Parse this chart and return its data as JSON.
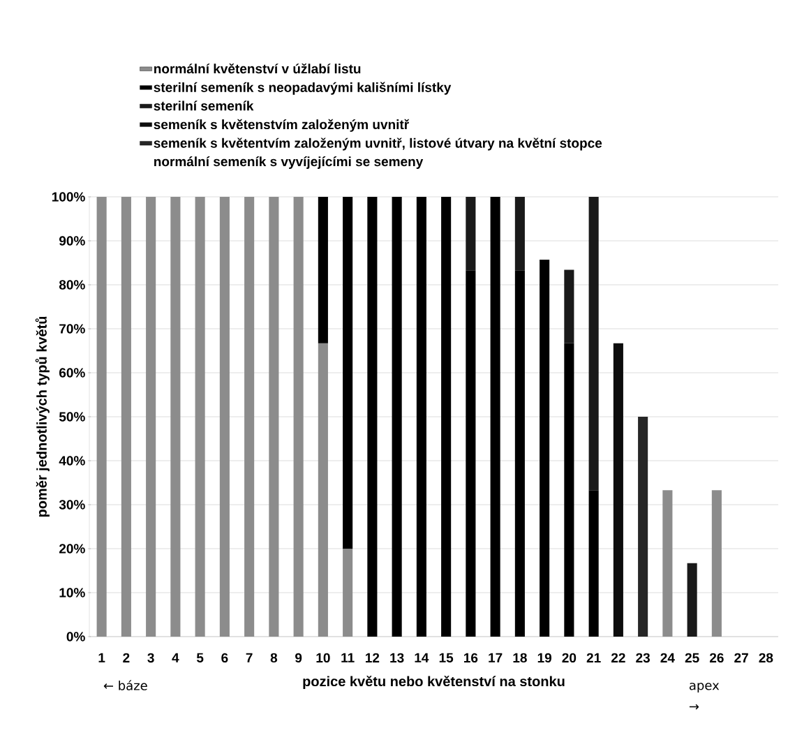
{
  "chart_data": {
    "type": "bar",
    "stacked": true,
    "xlabel": "pozice květu nebo květenství na stonku",
    "ylabel": "poměr jednotlivých typů květů",
    "categories": [
      "1",
      "2",
      "3",
      "4",
      "5",
      "6",
      "7",
      "8",
      "9",
      "10",
      "11",
      "12",
      "13",
      "14",
      "15",
      "16",
      "17",
      "18",
      "19",
      "20",
      "21",
      "22",
      "23",
      "24",
      "25",
      "26",
      "27",
      "28"
    ],
    "series": [
      {
        "name": "normální květenství v úžlabí listu",
        "color": "#8c8c8c",
        "values": [
          100,
          100,
          100,
          100,
          100,
          100,
          100,
          100,
          100,
          66.7,
          20,
          null,
          null,
          null,
          null,
          null,
          null,
          null,
          null,
          null,
          null,
          null,
          null,
          33.3,
          null,
          33.3,
          null,
          null
        ]
      },
      {
        "name": "sterilní semeník s neopadavými kališními lístky",
        "color": "#000000",
        "values": [
          null,
          null,
          null,
          null,
          null,
          null,
          null,
          null,
          null,
          33.3,
          80,
          100,
          100,
          100,
          100,
          83.3,
          100,
          83.3,
          85.7,
          66.7,
          33.3,
          null,
          null,
          null,
          null,
          null,
          null,
          null
        ]
      },
      {
        "name": "sterilní semeník",
        "color": "#1a1a1a",
        "values": [
          null,
          null,
          null,
          null,
          null,
          null,
          null,
          null,
          null,
          null,
          null,
          null,
          null,
          null,
          null,
          16.7,
          null,
          16.7,
          null,
          16.7,
          66.7,
          null,
          null,
          null,
          16.7,
          null,
          null,
          null
        ]
      },
      {
        "name": "semeník s květenstvím založeným uvnitř",
        "color": "#0d0d0d",
        "values": [
          null,
          null,
          null,
          null,
          null,
          null,
          null,
          null,
          null,
          null,
          null,
          null,
          null,
          null,
          null,
          null,
          null,
          null,
          null,
          null,
          null,
          66.7,
          null,
          null,
          null,
          null,
          null,
          null
        ]
      },
      {
        "name": "semeník s květentvím založeným uvnitř, listové útvary na květní stopce",
        "color": "#262626",
        "values": [
          null,
          null,
          null,
          null,
          null,
          null,
          null,
          null,
          null,
          null,
          null,
          null,
          null,
          null,
          null,
          null,
          null,
          null,
          null,
          null,
          null,
          null,
          50,
          null,
          null,
          null,
          null,
          null
        ]
      },
      {
        "name": "normální semeník s vyvíjejícími se semeny",
        "values": [
          null,
          null,
          null,
          null,
          null,
          null,
          null,
          null,
          null,
          null,
          null,
          null,
          null,
          null,
          null,
          null,
          null,
          null,
          null,
          null,
          null,
          null,
          null,
          null,
          null,
          null,
          null,
          null
        ]
      }
    ],
    "ylim": [
      0,
      100
    ],
    "yticks": [
      {
        "value": 0,
        "label": "0%"
      },
      {
        "value": 10,
        "label": "10%"
      },
      {
        "value": 20,
        "label": "20%"
      },
      {
        "value": 30,
        "label": "30%"
      },
      {
        "value": 40,
        "label": "40%"
      },
      {
        "value": 50,
        "label": "50%"
      },
      {
        "value": 60,
        "label": "60%"
      },
      {
        "value": 70,
        "label": "70%"
      },
      {
        "value": 80,
        "label": "80%"
      },
      {
        "value": 90,
        "label": "90%"
      },
      {
        "value": 100,
        "label": "100%"
      }
    ],
    "grid": "y",
    "legend": "top",
    "annotations": [
      "← báze",
      "apex →"
    ]
  }
}
